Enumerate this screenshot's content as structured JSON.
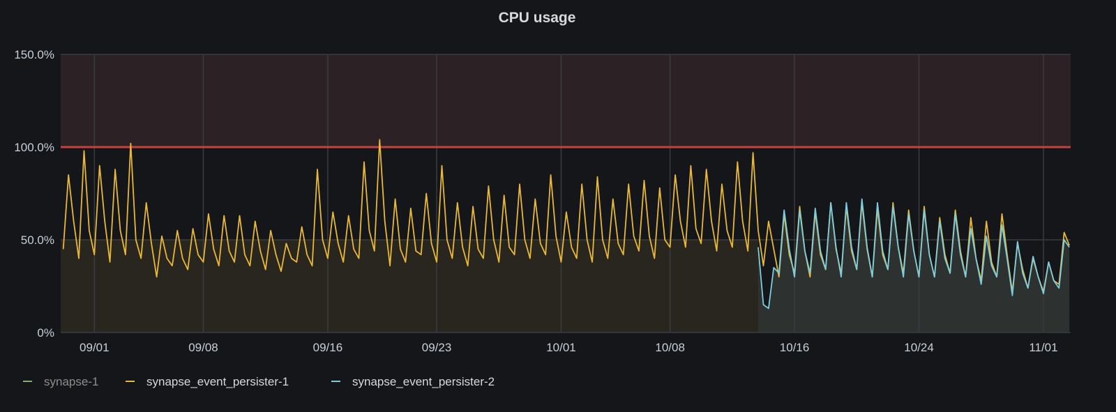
{
  "chart_data": {
    "type": "line",
    "title": "CPU usage",
    "xlabel": "",
    "ylabel": "",
    "ylim": [
      0,
      150
    ],
    "y_unit": "%",
    "y_ticks": [
      "0%",
      "50.0%",
      "100.0%",
      "150.0%"
    ],
    "y_tick_values": [
      0,
      50,
      100,
      150
    ],
    "x_ticks": [
      "09/01",
      "09/08",
      "09/16",
      "09/23",
      "10/01",
      "10/08",
      "10/16",
      "10/24",
      "11/01"
    ],
    "xlim": [
      "08/29 20:00",
      "11/02 18:00"
    ],
    "grid": true,
    "threshold": {
      "value": 100,
      "color": "#c4413f",
      "region_above_color": "#2c2225"
    },
    "legend_placement": "bottom-left",
    "series": [
      {
        "name": "synapse-1",
        "color": "#7eb26d",
        "hidden": true,
        "values": []
      },
      {
        "name": "synapse_event_persister-1",
        "color": "#eab839",
        "x_start": "08/30 00:00",
        "step_hours": 8,
        "values": [
          45,
          85,
          60,
          40,
          98,
          55,
          42,
          90,
          60,
          38,
          88,
          55,
          42,
          102,
          50,
          40,
          70,
          48,
          30,
          52,
          40,
          36,
          55,
          40,
          34,
          56,
          42,
          38,
          64,
          45,
          36,
          63,
          44,
          38,
          63,
          42,
          36,
          60,
          44,
          34,
          55,
          42,
          33,
          48,
          40,
          38,
          57,
          42,
          36,
          88,
          50,
          40,
          65,
          48,
          38,
          63,
          45,
          40,
          92,
          55,
          44,
          104,
          60,
          36,
          72,
          45,
          38,
          67,
          44,
          42,
          75,
          48,
          38,
          90,
          50,
          40,
          70,
          46,
          36,
          68,
          45,
          40,
          79,
          50,
          38,
          74,
          46,
          42,
          80,
          50,
          40,
          72,
          48,
          42,
          85,
          52,
          38,
          65,
          46,
          40,
          80,
          50,
          38,
          84,
          50,
          40,
          72,
          48,
          42,
          80,
          52,
          44,
          82,
          52,
          40,
          78,
          50,
          46,
          85,
          60,
          46,
          90,
          56,
          48,
          88,
          60,
          44,
          80,
          55,
          46,
          92,
          60,
          44,
          97,
          55,
          36,
          60,
          45,
          30,
          64,
          42,
          32,
          68,
          44,
          30,
          65,
          42,
          34,
          70,
          45,
          32,
          68,
          44,
          34,
          70,
          45,
          30,
          67,
          42,
          34,
          70,
          46,
          32,
          66,
          44,
          30,
          68,
          42,
          30,
          62,
          42,
          32,
          66,
          44,
          30,
          62,
          40,
          28,
          60,
          38,
          30,
          64,
          42,
          22,
          48,
          34,
          24,
          40,
          30,
          22,
          38,
          28,
          26,
          54,
          47
        ]
      },
      {
        "name": "synapse_event_persister-2",
        "color": "#7ccde0",
        "x_start": "10/13 16:00",
        "step_hours": 8,
        "values": [
          46,
          15,
          13,
          35,
          32,
          66,
          45,
          30,
          66,
          44,
          32,
          67,
          44,
          34,
          70,
          46,
          30,
          70,
          46,
          34,
          72,
          46,
          30,
          70,
          44,
          34,
          68,
          46,
          30,
          64,
          44,
          30,
          66,
          42,
          30,
          60,
          40,
          32,
          64,
          42,
          30,
          56,
          40,
          26,
          52,
          36,
          30,
          58,
          40,
          20,
          49,
          32,
          24,
          41,
          30,
          21,
          38,
          28,
          24,
          50,
          46
        ]
      }
    ]
  }
}
